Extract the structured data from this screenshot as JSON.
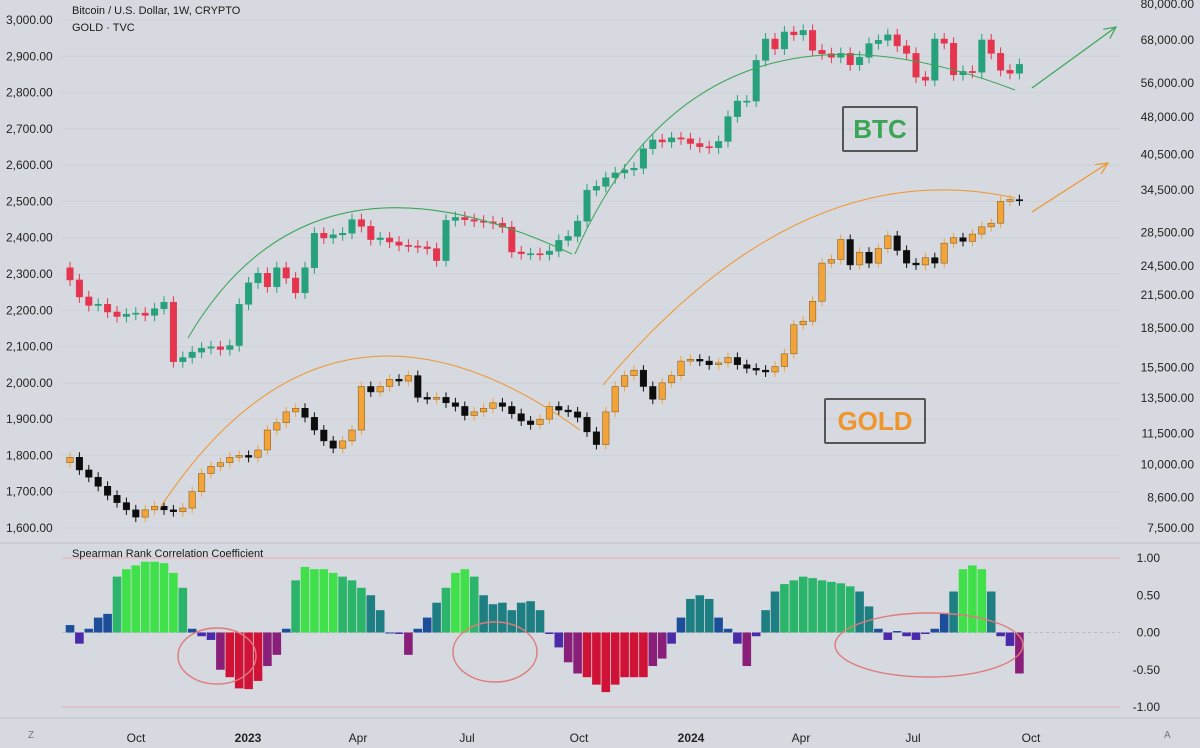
{
  "header": {
    "title_line": "Bitcoin / U.S. Dollar, 1W, CRYPTO",
    "subtitle_line": "GOLD · TVC",
    "indicator_title": "Spearman Rank Correlation Coefficient"
  },
  "labels": {
    "btc": "BTC",
    "gold": "GOLD"
  },
  "corners": {
    "left": "Z",
    "right": "A"
  },
  "colors": {
    "background": "#d6d9df",
    "btc_up": "#26a17b",
    "btc_down": "#e5354e",
    "gold_up": "#f2a33a",
    "gold_down": "#0d0d0d",
    "btc_arc": "#3aa655",
    "gold_arc": "#f0952a",
    "annotation_circle": "#e07a7a"
  },
  "chart_data": {
    "type": "candlestick",
    "x_axis": {
      "labels": [
        "Oct",
        "2023",
        "Apr",
        "Jul",
        "Oct",
        "2024",
        "Apr",
        "Jul",
        "Oct"
      ],
      "bold": [
        false,
        true,
        false,
        false,
        false,
        true,
        false,
        false,
        false
      ]
    },
    "gold_axis_left": {
      "ticks": [
        "3,000.00",
        "2,900.00",
        "2,800.00",
        "2,700.00",
        "2,600.00",
        "2,500.00",
        "2,400.00",
        "2,300.00",
        "2,200.00",
        "2,100.00",
        "2,000.00",
        "1,900.00",
        "1,800.00",
        "1,700.00",
        "1,600.00"
      ],
      "range": [
        1570,
        3010
      ]
    },
    "btc_axis_right": {
      "scale": "log",
      "ticks": [
        "80,000.00",
        "68,000.00",
        "56,000.00",
        "48,000.00",
        "40,500.00",
        "34,500.00",
        "28,500.00",
        "24,500.00",
        "21,500.00",
        "18,500.00",
        "15,500.00",
        "13,500.00",
        "11,500.00",
        "10,000.00",
        "8,600.00",
        "7,500.00"
      ]
    },
    "series": [
      {
        "name": "Bitcoin / U.S. Dollar, 1W, CRYPTO",
        "close": [
          23000,
          21300,
          20500,
          20600,
          19900,
          19500,
          19700,
          19800,
          19600,
          20200,
          20800,
          15900,
          16200,
          16600,
          16900,
          17000,
          16800,
          17100,
          20600,
          22700,
          23700,
          22300,
          24300,
          23200,
          21700,
          24300,
          28400,
          27800,
          28200,
          28400,
          30200,
          29300,
          27600,
          27800,
          27300,
          26900,
          26800,
          26700,
          26500,
          25100,
          30100,
          30500,
          30200,
          30000,
          29900,
          29700,
          29200,
          26100,
          25900,
          25900,
          25800,
          26200,
          27500,
          28000,
          30000,
          34500,
          35100,
          36500,
          37300,
          37800,
          38100,
          41600,
          43300,
          42900,
          43700,
          43500,
          42600,
          42000,
          41800,
          43000,
          48100,
          51600,
          51600,
          62000,
          68300,
          65300,
          70500,
          69600,
          71000,
          64900,
          63900,
          62900,
          64000,
          60800,
          62900,
          66900,
          67900,
          69600,
          66200,
          64000,
          57500,
          56700,
          68300,
          67000,
          58100,
          59000,
          58800,
          68000,
          64000,
          59300,
          58500,
          60900
        ]
      },
      {
        "name": "GOLD · TVC",
        "close": [
          1795,
          1760,
          1740,
          1715,
          1690,
          1670,
          1650,
          1630,
          1650,
          1660,
          1650,
          1645,
          1655,
          1700,
          1750,
          1770,
          1780,
          1795,
          1800,
          1795,
          1815,
          1870,
          1890,
          1920,
          1930,
          1905,
          1870,
          1840,
          1820,
          1840,
          1870,
          1990,
          1975,
          1990,
          2010,
          2005,
          2020,
          1960,
          1955,
          1960,
          1945,
          1935,
          1910,
          1920,
          1930,
          1945,
          1935,
          1915,
          1895,
          1885,
          1900,
          1935,
          1925,
          1920,
          1905,
          1865,
          1830,
          1920,
          1990,
          2020,
          2035,
          1990,
          1955,
          2000,
          2020,
          2060,
          2065,
          2060,
          2050,
          2055,
          2070,
          2050,
          2040,
          2035,
          2030,
          2045,
          2080,
          2160,
          2170,
          2225,
          2330,
          2340,
          2395,
          2325,
          2360,
          2330,
          2370,
          2405,
          2365,
          2330,
          2325,
          2345,
          2330,
          2385,
          2400,
          2390,
          2410,
          2430,
          2440,
          2500,
          2505,
          2502
        ]
      }
    ],
    "indicator": {
      "title": "Spearman Rank Correlation Coefficient",
      "ticks": [
        "1.00",
        "0.50",
        "0.00",
        "-0.50",
        "-1.00"
      ],
      "range": [
        -1.0,
        1.0
      ],
      "values": [
        0.1,
        -0.15,
        0.05,
        0.2,
        0.25,
        0.75,
        0.85,
        0.9,
        0.95,
        0.95,
        0.93,
        0.8,
        0.6,
        0.05,
        -0.05,
        -0.1,
        -0.5,
        -0.6,
        -0.75,
        -0.76,
        -0.65,
        -0.45,
        -0.3,
        0.05,
        0.7,
        0.88,
        0.85,
        0.85,
        0.8,
        0.75,
        0.7,
        0.6,
        0.5,
        0.3,
        0.0,
        -0.02,
        -0.3,
        0.05,
        0.2,
        0.4,
        0.6,
        0.8,
        0.85,
        0.75,
        0.5,
        0.38,
        0.4,
        0.3,
        0.4,
        0.42,
        0.3,
        -0.02,
        -0.2,
        -0.4,
        -0.55,
        -0.6,
        -0.7,
        -0.8,
        -0.7,
        -0.6,
        -0.6,
        -0.6,
        -0.45,
        -0.35,
        -0.15,
        0.2,
        0.45,
        0.5,
        0.45,
        0.2,
        0.05,
        -0.15,
        -0.45,
        -0.05,
        0.3,
        0.55,
        0.65,
        0.7,
        0.75,
        0.73,
        0.7,
        0.68,
        0.66,
        0.62,
        0.55,
        0.35,
        0.05,
        -0.1,
        0.02,
        -0.05,
        -0.1,
        -0.02,
        0.05,
        0.25,
        0.55,
        0.85,
        0.9,
        0.85,
        0.55,
        -0.05,
        -0.18,
        -0.55
      ]
    },
    "annotations": [
      "BTC",
      "GOLD"
    ]
  }
}
